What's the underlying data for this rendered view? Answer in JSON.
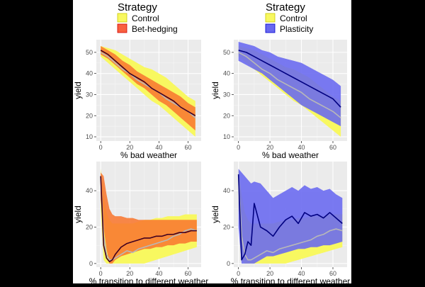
{
  "chart_data": [
    {
      "type": "area",
      "id": "top-left",
      "legend_title": "Strategy",
      "legend_entries": [
        {
          "label": "Control",
          "color": "#ffff00"
        },
        {
          "label": "Bet-hedging",
          "color": "#ff0000"
        }
      ],
      "xlabel": "% bad weather",
      "ylabel": "yield",
      "xlim": [
        -3,
        69
      ],
      "ylim": [
        8,
        56
      ],
      "xticks": [
        0,
        20,
        40,
        60
      ],
      "yticks": [
        10,
        20,
        30,
        40,
        50
      ],
      "x": [
        0,
        5,
        10,
        15,
        20,
        25,
        30,
        35,
        40,
        45,
        50,
        55,
        60,
        65
      ],
      "series": [
        {
          "name": "Control",
          "fill": "#f8f860",
          "line": "#b8b8b8",
          "lower": [
            48,
            45,
            42,
            39,
            36,
            33,
            30,
            27,
            25,
            22,
            19,
            16,
            13,
            10
          ],
          "mean": [
            50,
            48,
            45,
            42,
            40,
            37,
            35,
            33,
            31,
            28,
            26,
            24,
            22,
            19
          ],
          "upper": [
            53,
            52,
            51,
            49,
            47,
            45,
            43,
            42,
            40,
            38,
            35,
            32,
            29,
            27
          ]
        },
        {
          "name": "Bet-hedging",
          "fill": "#f87830",
          "line": "#400020",
          "lower": [
            49,
            47,
            44,
            41,
            38,
            35,
            33,
            30,
            27,
            25,
            22,
            19,
            16,
            13
          ],
          "mean": [
            51,
            49,
            46,
            43,
            40,
            38,
            36,
            33,
            31,
            29,
            27,
            24,
            22,
            20
          ],
          "upper": [
            53,
            51,
            49,
            46,
            44,
            41,
            39,
            37,
            35,
            33,
            31,
            29,
            26,
            24
          ]
        }
      ]
    },
    {
      "type": "area",
      "id": "top-right",
      "legend_title": "Strategy",
      "legend_entries": [
        {
          "label": "Control",
          "color": "#ffff00"
        },
        {
          "label": "Plasticity",
          "color": "#0000ff"
        }
      ],
      "xlabel": "% bad weather",
      "ylabel": "yield",
      "xlim": [
        -3,
        69
      ],
      "ylim": [
        8,
        56
      ],
      "xticks": [
        0,
        20,
        40,
        60
      ],
      "yticks": [
        10,
        20,
        30,
        40,
        50
      ],
      "x": [
        0,
        5,
        10,
        15,
        20,
        25,
        30,
        35,
        40,
        45,
        50,
        55,
        60,
        65
      ],
      "series": [
        {
          "name": "Control",
          "fill": "#f8f860",
          "line": "#b8b8b8",
          "lower": [
            48,
            45,
            42,
            39,
            36,
            33,
            30,
            27,
            25,
            22,
            19,
            16,
            13,
            10
          ],
          "mean": [
            50,
            48,
            45,
            42,
            40,
            37,
            35,
            33,
            31,
            28,
            26,
            24,
            22,
            19
          ],
          "upper": [
            53,
            52,
            51,
            49,
            47,
            45,
            43,
            42,
            40,
            38,
            35,
            32,
            29,
            27
          ]
        },
        {
          "name": "Plasticity",
          "fill": "#6868f0",
          "line": "#000080",
          "lower": [
            46,
            44,
            42,
            40,
            37,
            34,
            31,
            28,
            25,
            23,
            21,
            19,
            17,
            15
          ],
          "mean": [
            51,
            50,
            48,
            46,
            44,
            42,
            40,
            38,
            36,
            34,
            32,
            30,
            28,
            24
          ],
          "upper": [
            55,
            54,
            53,
            51,
            50,
            48,
            47,
            46,
            45,
            43,
            41,
            39,
            37,
            34
          ]
        }
      ]
    },
    {
      "type": "area",
      "id": "bottom-left",
      "xlabel": "% transition to different weather",
      "ylabel": "yield",
      "xlim": [
        -3,
        69
      ],
      "ylim": [
        -2,
        56
      ],
      "xticks": [
        0,
        20,
        40,
        60
      ],
      "yticks": [
        0,
        20,
        40
      ],
      "x": [
        0,
        2,
        4,
        6,
        8,
        10,
        14,
        18,
        22,
        26,
        30,
        34,
        38,
        42,
        46,
        50,
        54,
        58,
        62,
        66
      ],
      "series": [
        {
          "name": "Control",
          "fill": "#f8f860",
          "line": "#b8b8b8",
          "lower": [
            30,
            2,
            0,
            0,
            0,
            0,
            0,
            0,
            0,
            0,
            0,
            1,
            2,
            3,
            4,
            5,
            6,
            7,
            8,
            9
          ],
          "mean": [
            48,
            15,
            5,
            2,
            2,
            3,
            5,
            7,
            6,
            8,
            9,
            10,
            11,
            12,
            13,
            15,
            16,
            18,
            19,
            18
          ],
          "upper": [
            52,
            38,
            28,
            24,
            22,
            22,
            22,
            22,
            22,
            23,
            24,
            24,
            25,
            25,
            26,
            26,
            26,
            27,
            27,
            27
          ]
        },
        {
          "name": "Bet-hedging",
          "fill": "#f87830",
          "line": "#400020",
          "lower": [
            35,
            20,
            8,
            0,
            0,
            2,
            4,
            5,
            6,
            7,
            8,
            8,
            9,
            9,
            10,
            10,
            11,
            11,
            12,
            12
          ],
          "mean": [
            48,
            10,
            3,
            1,
            2,
            5,
            9,
            11,
            12,
            13,
            14,
            14,
            15,
            15,
            16,
            16,
            17,
            17,
            18,
            18
          ],
          "upper": [
            50,
            48,
            38,
            30,
            27,
            26,
            26,
            25,
            25,
            24,
            24,
            24,
            24,
            24,
            24,
            24,
            24,
            24,
            24,
            24
          ]
        }
      ]
    },
    {
      "type": "area",
      "id": "bottom-right",
      "xlabel": "% transition to different weather",
      "ylabel": "yield",
      "xlim": [
        -3,
        69
      ],
      "ylim": [
        -2,
        56
      ],
      "xticks": [
        0,
        20,
        40,
        60
      ],
      "yticks": [
        0,
        20,
        40
      ],
      "x": [
        0,
        2,
        4,
        6,
        8,
        10,
        14,
        18,
        22,
        26,
        30,
        34,
        38,
        42,
        46,
        50,
        54,
        58,
        62,
        66
      ],
      "series": [
        {
          "name": "Control",
          "fill": "#f8f860",
          "line": "#b8b8b8",
          "lower": [
            30,
            2,
            0,
            0,
            0,
            0,
            0,
            0,
            0,
            0,
            0,
            1,
            2,
            3,
            4,
            5,
            6,
            7,
            8,
            9
          ],
          "mean": [
            48,
            15,
            5,
            2,
            2,
            3,
            5,
            7,
            6,
            8,
            9,
            10,
            11,
            12,
            13,
            15,
            16,
            18,
            19,
            18
          ],
          "upper": [
            52,
            38,
            28,
            24,
            22,
            22,
            22,
            22,
            22,
            23,
            24,
            24,
            25,
            25,
            26,
            26,
            26,
            27,
            27,
            27
          ]
        },
        {
          "name": "Plasticity",
          "fill": "#6868f0",
          "line": "#000080",
          "lower": [
            20,
            0,
            0,
            0,
            0,
            0,
            2,
            4,
            4,
            5,
            6,
            7,
            8,
            8,
            9,
            9,
            10,
            10,
            11,
            12
          ],
          "mean": [
            49,
            2,
            5,
            12,
            10,
            33,
            20,
            18,
            15,
            20,
            24,
            26,
            22,
            28,
            26,
            27,
            25,
            28,
            25,
            22
          ],
          "upper": [
            52,
            50,
            48,
            46,
            44,
            45,
            44,
            40,
            36,
            38,
            40,
            42,
            40,
            43,
            41,
            42,
            40,
            41,
            38,
            36
          ]
        }
      ]
    }
  ]
}
